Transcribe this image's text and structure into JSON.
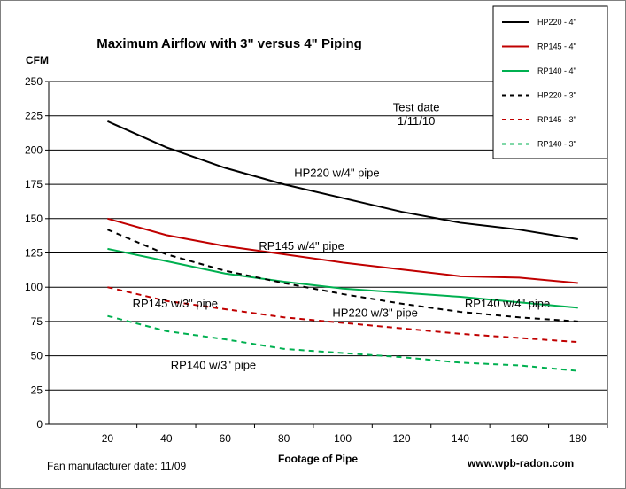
{
  "chart_data": {
    "type": "line",
    "title": "Maximum Airflow with 3\" versus 4\" Piping",
    "xlabel": "Footage of Pipe",
    "ylabel": "CFM",
    "xlim": [
      0,
      190
    ],
    "ylim": [
      0,
      250
    ],
    "xticks": [
      20,
      40,
      60,
      80,
      100,
      120,
      140,
      160,
      180
    ],
    "yticks": [
      0,
      25,
      50,
      75,
      100,
      125,
      150,
      175,
      200,
      225,
      250
    ],
    "grid": "horizontal",
    "legend_position": "top-right",
    "x": [
      20,
      40,
      60,
      80,
      100,
      120,
      140,
      160,
      180
    ],
    "series": [
      {
        "name": "HP220 - 4\"",
        "color": "#000000",
        "dash": "solid",
        "values": [
          221,
          202,
          187,
          175,
          165,
          155,
          147,
          142,
          135
        ]
      },
      {
        "name": "RP145 - 4\"",
        "color": "#c00000",
        "dash": "solid",
        "values": [
          150,
          138,
          130,
          124,
          118,
          113,
          108,
          107,
          103
        ]
      },
      {
        "name": "RP140 - 4\"",
        "color": "#00b050",
        "dash": "solid",
        "values": [
          128,
          119,
          110,
          104,
          99,
          96,
          93,
          89,
          85
        ]
      },
      {
        "name": "HP220 - 3\"",
        "color": "#000000",
        "dash": "dashed",
        "values": [
          142,
          124,
          112,
          103,
          95,
          88,
          82,
          78,
          75
        ]
      },
      {
        "name": "RP145 - 3\"",
        "color": "#c00000",
        "dash": "dashed",
        "values": [
          100,
          90,
          84,
          78,
          74,
          70,
          66,
          63,
          60
        ]
      },
      {
        "name": "RP140 - 3\"",
        "color": "#00b050",
        "dash": "dashed",
        "values": [
          79,
          68,
          62,
          55,
          52,
          49,
          45,
          43,
          39
        ]
      }
    ],
    "annotations": [
      {
        "text": "Test date",
        "x": 125,
        "y": 231
      },
      {
        "text": "1/11/10",
        "x": 125,
        "y": 221
      },
      {
        "text": "HP220 w/4\" pipe",
        "x": 98,
        "y": 183
      },
      {
        "text": "RP145 w/4\" pipe",
        "x": 86,
        "y": 130
      },
      {
        "text": "RP145 w/3\" pipe",
        "x": 43,
        "y": 88
      },
      {
        "text": "HP220 w/3\" pipe",
        "x": 111,
        "y": 81
      },
      {
        "text": "RP140 w/4\" pipe",
        "x": 156,
        "y": 88
      },
      {
        "text": "RP140 w/3\" pipe",
        "x": 56,
        "y": 43
      }
    ]
  },
  "footer": {
    "left": "Fan manufacturer date:  11/09",
    "right": "www.wpb-radon.com"
  }
}
